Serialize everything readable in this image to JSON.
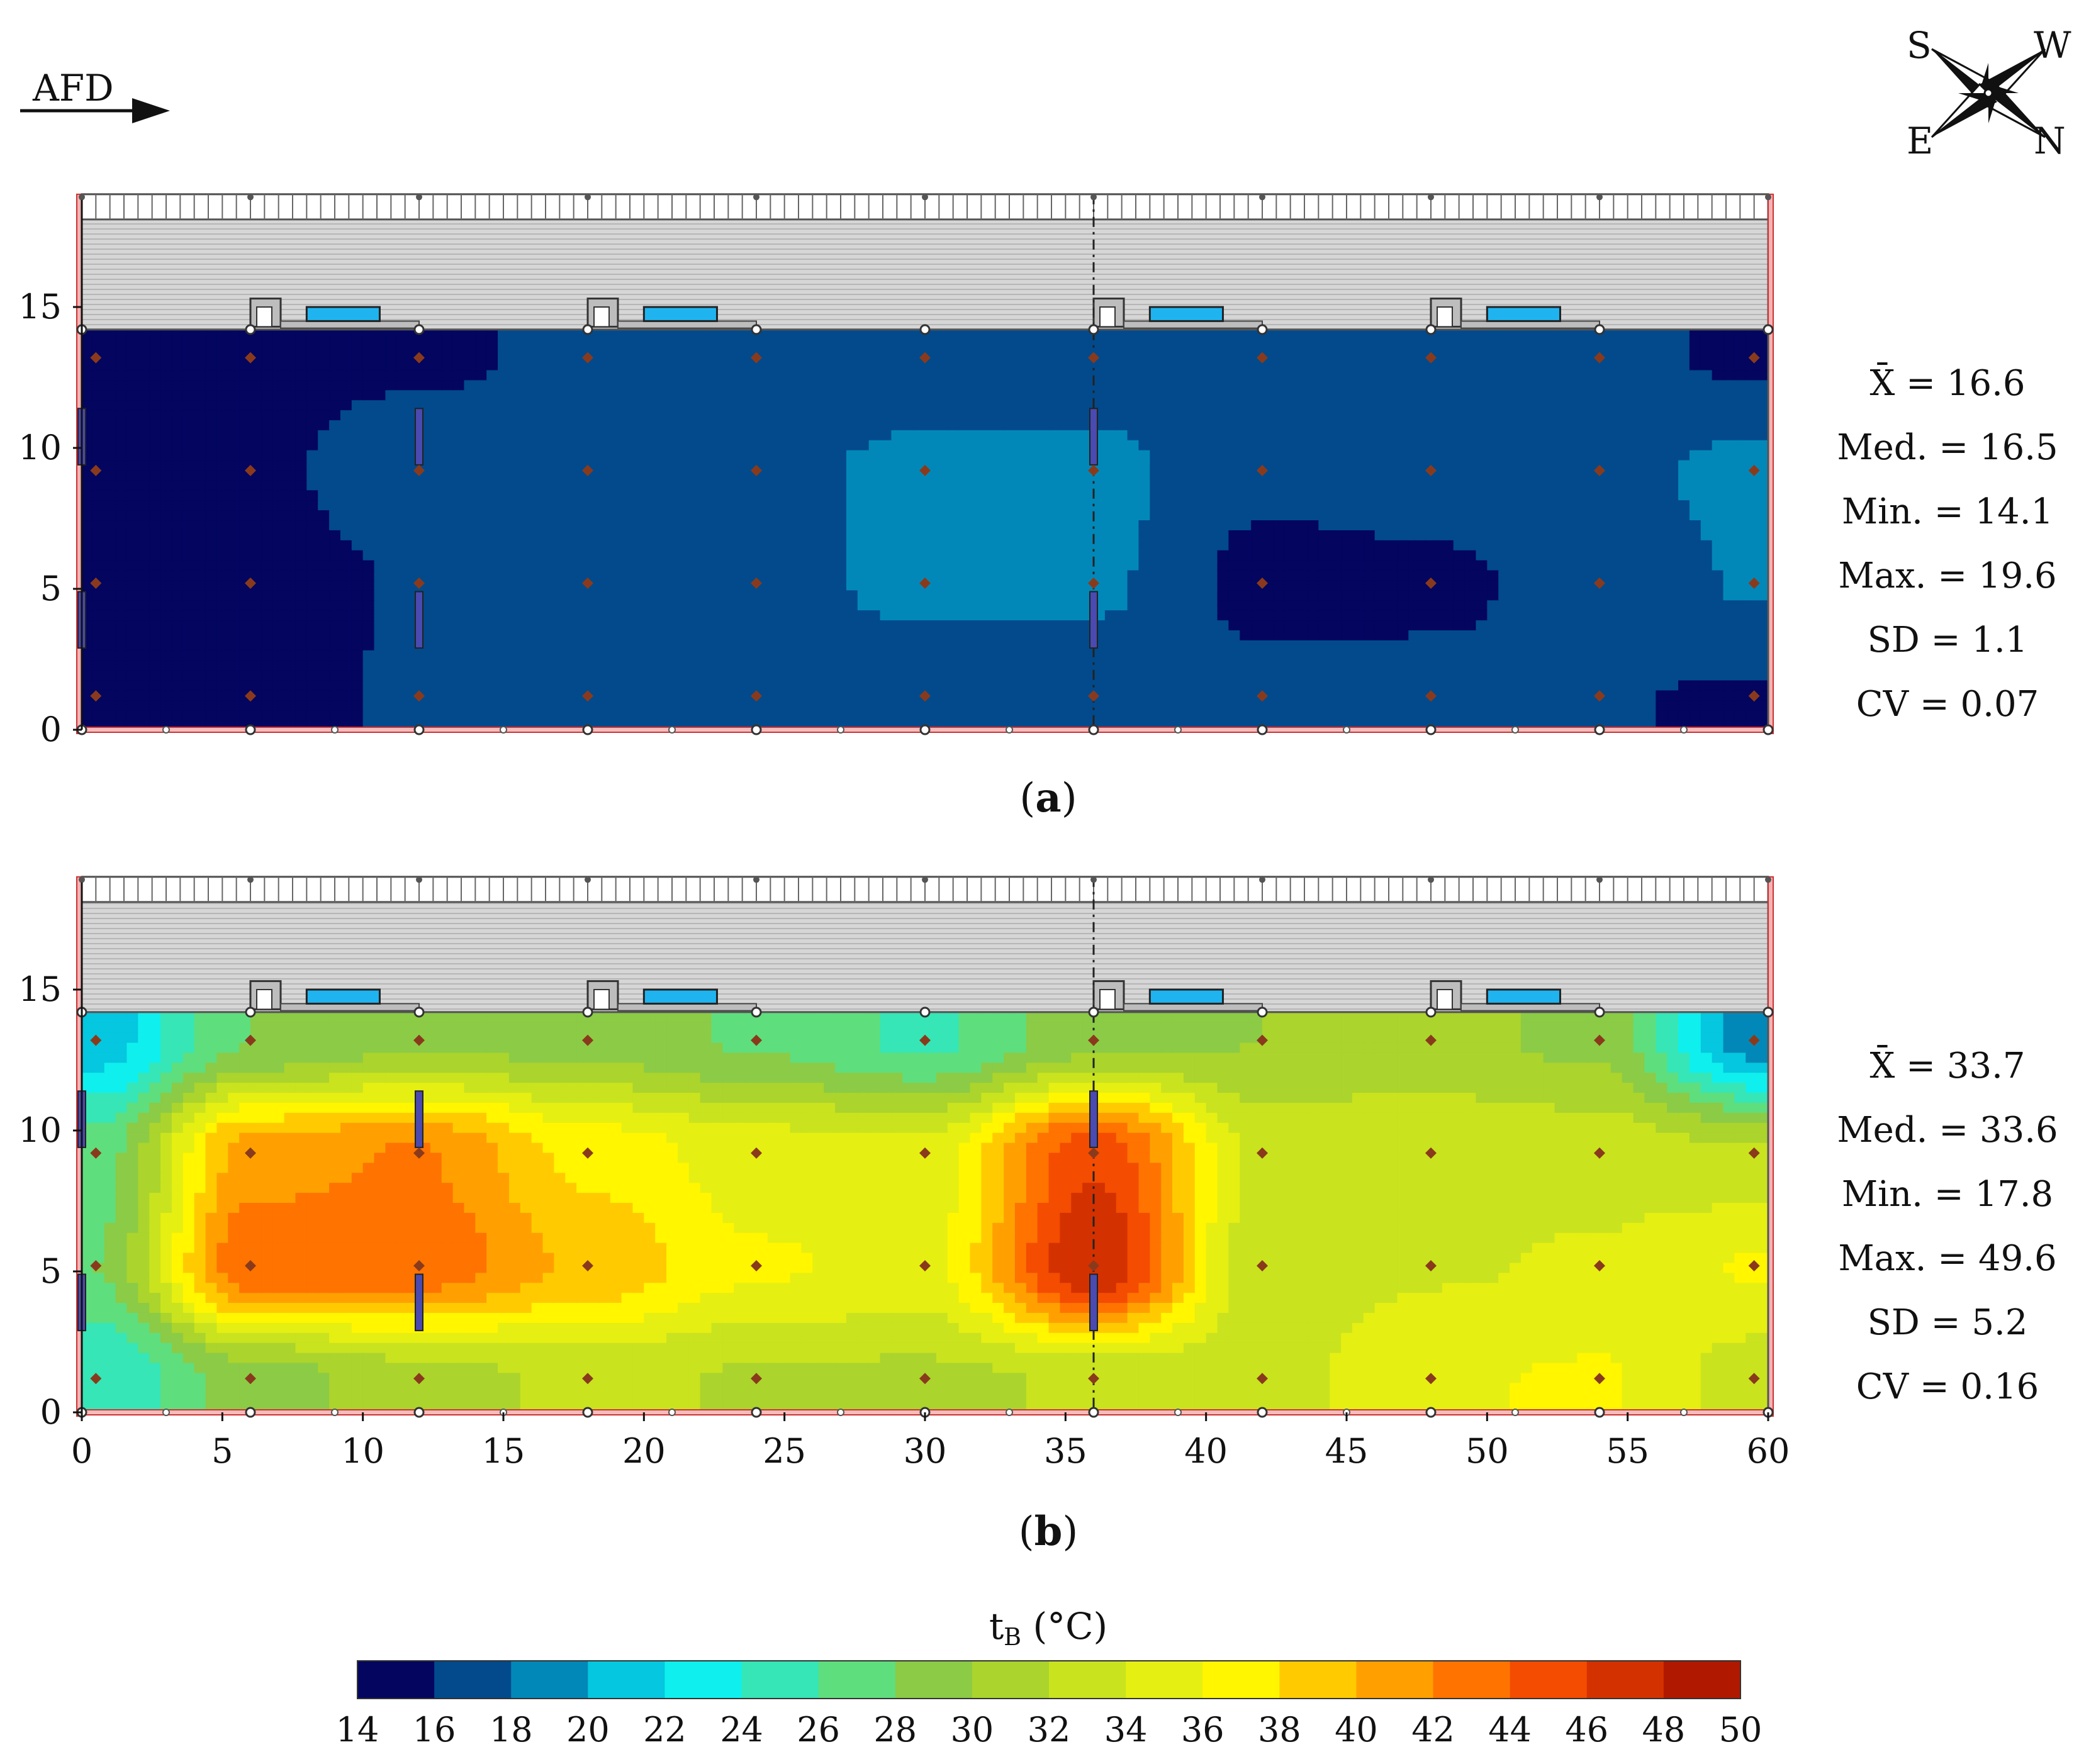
{
  "header": {
    "airflow_label": "AFD",
    "compass": {
      "n1": "S",
      "n2": "W",
      "s1": "E",
      "s2": "N"
    }
  },
  "panels": [
    {
      "label_open": "(",
      "label_letter": "a",
      "label_close": ")",
      "stats": [
        {
          "name": "X̄",
          "value": "16.6",
          "overline": true
        },
        {
          "name": "Med.",
          "value": "16.5"
        },
        {
          "name": "Min.",
          "value": "14.1"
        },
        {
          "name": "Max.",
          "value": "19.6"
        },
        {
          "name": "SD",
          "value": "1.1"
        },
        {
          "name": "CV",
          "value": "0.07"
        }
      ]
    },
    {
      "label_open": "(",
      "label_letter": "b",
      "label_close": ")",
      "stats": [
        {
          "name": "X̄",
          "value": "33.7",
          "overline": true
        },
        {
          "name": "Med.",
          "value": "33.6"
        },
        {
          "name": "Min.",
          "value": "17.8"
        },
        {
          "name": "Max.",
          "value": "49.6"
        },
        {
          "name": "SD",
          "value": "5.2"
        },
        {
          "name": "CV",
          "value": "0.16"
        }
      ]
    }
  ],
  "chart_data": {
    "type": "heatmap",
    "x_ticks": [
      0,
      5,
      10,
      15,
      20,
      25,
      30,
      35,
      40,
      45,
      50,
      55,
      60
    ],
    "y_ticks": [
      0,
      5,
      10,
      15
    ],
    "xlim": [
      0,
      60
    ],
    "ylim": [
      0,
      19
    ],
    "measurement_points": {
      "x": [
        0.5,
        6,
        12,
        18,
        24,
        30,
        36,
        42,
        48,
        54,
        59.5
      ],
      "y": [
        1.2,
        5.2,
        9.2,
        13.2
      ]
    },
    "colorbar": {
      "label_main": "t",
      "label_sub": "B",
      "label_unit": " (°C)",
      "ticks": [
        14,
        16,
        18,
        20,
        22,
        24,
        26,
        28,
        30,
        32,
        34,
        36,
        38,
        40,
        42,
        44,
        46,
        48,
        50
      ],
      "colors": [
        "#03055f",
        "#024a8c",
        "#0288b8",
        "#05c7df",
        "#0ff0ee",
        "#36e6b6",
        "#5fde7d",
        "#8ccb46",
        "#abd42c",
        "#c9e31f",
        "#e6ef12",
        "#fff600",
        "#ffcb00",
        "#ffa000",
        "#ff7300",
        "#f44c00",
        "#d43100",
        "#b01800"
      ]
    },
    "panels": [
      {
        "id": "a",
        "value_grid": [
          [
            15.2,
            15.4,
            16.2,
            16.3,
            16.6,
            16.6,
            16.6,
            16.5,
            16.4,
            16.1,
            15.8
          ],
          [
            15.3,
            15.4,
            16.1,
            16.8,
            17.2,
            18.6,
            18.4,
            15.4,
            15.7,
            16.6,
            18.2
          ],
          [
            15.4,
            15.7,
            16.8,
            17.0,
            17.4,
            18.6,
            18.7,
            16.4,
            16.6,
            17.4,
            18.6
          ],
          [
            15.4,
            15.6,
            15.8,
            16.2,
            16.6,
            16.4,
            16.7,
            16.5,
            16.7,
            16.4,
            15.7
          ]
        ]
      },
      {
        "id": "b",
        "value_grid": [
          [
            24.0,
            29.0,
            31.0,
            32.6,
            31.8,
            31.6,
            32.2,
            33.0,
            35.8,
            36.2,
            33.0
          ],
          [
            28.0,
            43.6,
            43.4,
            39.6,
            36.2,
            35.4,
            48.0,
            32.6,
            33.8,
            34.2,
            36.2
          ],
          [
            27.0,
            41.0,
            42.2,
            37.4,
            35.0,
            34.8,
            45.6,
            33.6,
            33.8,
            33.2,
            32.2
          ],
          [
            21.0,
            28.0,
            29.6,
            29.2,
            27.8,
            25.6,
            29.2,
            30.0,
            30.4,
            29.6,
            19.0
          ]
        ]
      }
    ]
  }
}
